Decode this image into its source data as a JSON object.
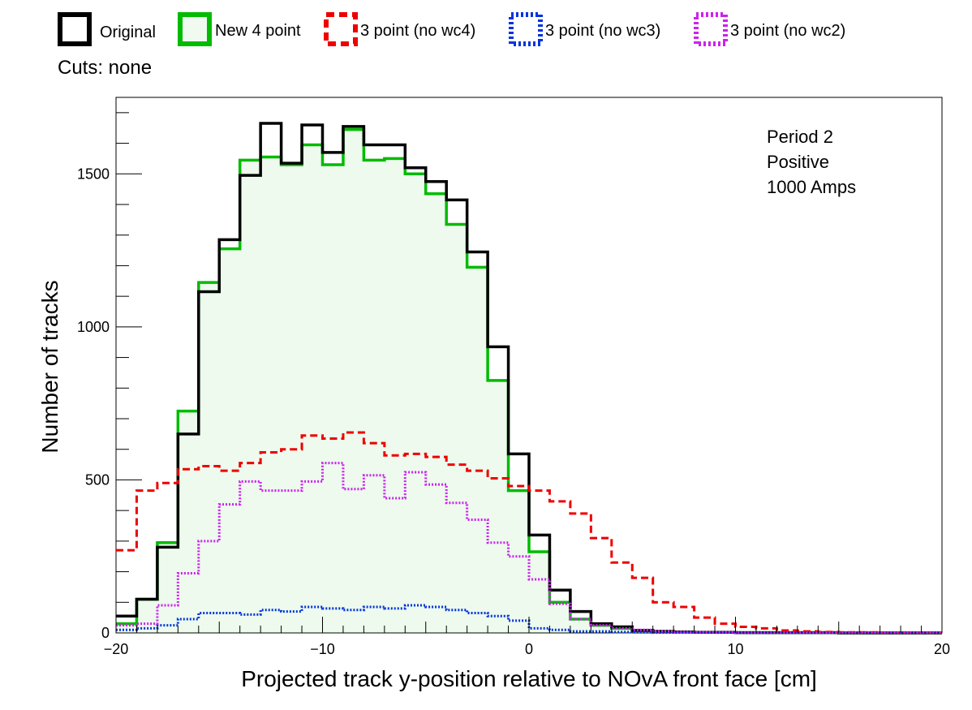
{
  "legend": {
    "entries": [
      {
        "label": "Original",
        "color": "#000000",
        "style": "solid"
      },
      {
        "label": "New 4 point",
        "color": "#00bb00",
        "style": "solid"
      },
      {
        "label": "3 point (no wc4)",
        "color": "#ee0000",
        "style": "dashed"
      },
      {
        "label": "3 point (no wc3)",
        "color": "#0033dd",
        "style": "dotted"
      },
      {
        "label": "3 point (no wc2)",
        "color": "#cc22ee",
        "style": "dotted"
      }
    ]
  },
  "cuts_label": "Cuts: none",
  "annotation": [
    "Period 2",
    "Positive",
    "1000 Amps"
  ],
  "chart_data": {
    "type": "histogram",
    "xlabel": "Projected track y-position relative to NOvA front face [cm]",
    "ylabel": "Number of tracks",
    "xlim": [
      -20,
      20
    ],
    "ylim": [
      0,
      1750
    ],
    "xticks": [
      -20,
      -10,
      0,
      10,
      20
    ],
    "xtick_labels": [
      "−20",
      "−10",
      "0",
      "10",
      "20"
    ],
    "yticks": [
      0,
      500,
      1000,
      1500
    ],
    "ytick_labels": [
      "0",
      "500",
      "1000",
      "1500"
    ],
    "grid": false,
    "bin_edges": [
      -20,
      -19,
      -18,
      -17,
      -16,
      -15,
      -14,
      -13,
      -12,
      -11,
      -10,
      -9,
      -8,
      -7,
      -6,
      -5,
      -4,
      -3,
      -2,
      -1,
      0,
      1,
      2,
      3,
      4,
      5,
      6,
      7,
      8,
      9,
      10,
      11,
      12,
      13,
      14,
      15,
      16,
      17,
      18,
      19,
      20
    ],
    "series": [
      {
        "name": "Original",
        "color": "#000000",
        "style": "solid",
        "fill": false,
        "values": [
          55,
          110,
          280,
          650,
          1115,
          1285,
          1495,
          1665,
          1535,
          1660,
          1570,
          1655,
          1595,
          1595,
          1520,
          1475,
          1415,
          1245,
          935,
          585,
          320,
          140,
          70,
          30,
          20,
          8,
          5,
          3,
          2,
          2,
          1,
          1,
          1,
          1,
          1,
          0,
          0,
          0,
          0,
          0
        ]
      },
      {
        "name": "New 4 point",
        "color": "#00bb00",
        "style": "solid",
        "fill": true,
        "values": [
          30,
          110,
          295,
          725,
          1145,
          1255,
          1545,
          1555,
          1530,
          1595,
          1530,
          1645,
          1545,
          1550,
          1500,
          1435,
          1335,
          1195,
          825,
          465,
          265,
          100,
          45,
          25,
          15,
          8,
          5,
          3,
          2,
          2,
          1,
          1,
          1,
          1,
          1,
          0,
          0,
          0,
          0,
          0
        ]
      },
      {
        "name": "3 point (no wc4)",
        "color": "#ee0000",
        "style": "dashed",
        "fill": false,
        "values": [
          270,
          465,
          490,
          535,
          545,
          530,
          555,
          590,
          600,
          645,
          635,
          655,
          620,
          580,
          585,
          575,
          550,
          530,
          505,
          480,
          465,
          430,
          390,
          310,
          230,
          180,
          100,
          85,
          50,
          30,
          20,
          15,
          8,
          5,
          3,
          2,
          2,
          1,
          1,
          1
        ]
      },
      {
        "name": "3 point (no wc3)",
        "color": "#0033dd",
        "style": "dotted",
        "fill": false,
        "values": [
          10,
          15,
          25,
          45,
          65,
          65,
          60,
          75,
          70,
          85,
          80,
          75,
          85,
          80,
          90,
          85,
          75,
          65,
          55,
          40,
          15,
          10,
          5,
          5,
          3,
          2,
          1,
          1,
          1,
          1,
          1,
          1,
          1,
          1,
          1,
          1,
          1,
          1,
          1,
          1
        ]
      },
      {
        "name": "3 point (no wc2)",
        "color": "#cc22ee",
        "style": "dotted",
        "fill": false,
        "values": [
          25,
          30,
          90,
          195,
          300,
          420,
          495,
          465,
          465,
          495,
          555,
          470,
          515,
          440,
          525,
          485,
          425,
          370,
          295,
          250,
          175,
          95,
          45,
          25,
          15,
          10,
          5,
          3,
          2,
          2,
          1,
          1,
          1,
          1,
          1,
          1,
          1,
          1,
          1,
          1
        ]
      }
    ]
  }
}
